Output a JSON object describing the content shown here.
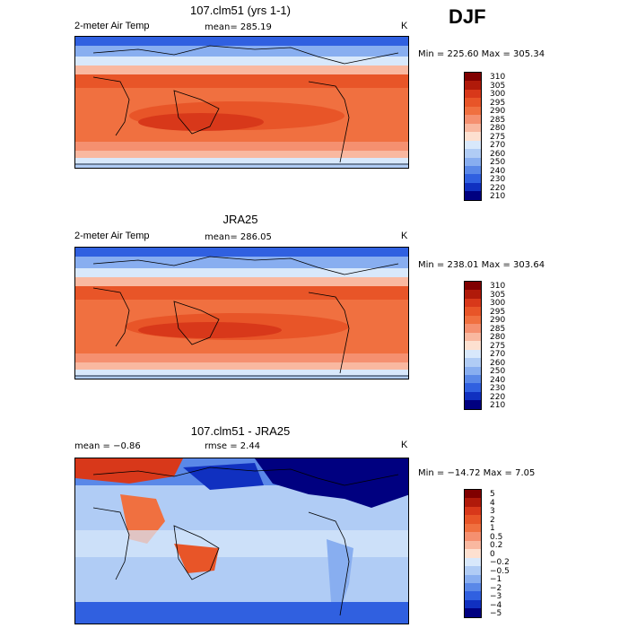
{
  "season": "DJF",
  "panels": [
    {
      "title": "107.clm51 (yrs 1-1)",
      "variable": "2-meter Air Temp",
      "mean_label": "mean= 285.19",
      "units": "K",
      "minmax": "Min = 225.60 Max = 305.34",
      "colorbar_labels": [
        "310",
        "305",
        "300",
        "295",
        "290",
        "285",
        "280",
        "275",
        "270",
        "260",
        "250",
        "240",
        "230",
        "220",
        "210"
      ]
    },
    {
      "title": "JRA25",
      "variable": "2-meter Air Temp",
      "mean_label": "mean= 286.05",
      "units": "K",
      "minmax": "Min = 238.01 Max = 303.64",
      "colorbar_labels": [
        "310",
        "305",
        "300",
        "295",
        "290",
        "285",
        "280",
        "275",
        "270",
        "260",
        "250",
        "240",
        "230",
        "220",
        "210"
      ]
    },
    {
      "title": "107.clm51 - JRA25",
      "mean_label": "mean = −0.86",
      "rmse_label": "rmse = 2.44",
      "units": "K",
      "minmax": "Min = −14.72 Max = 7.05",
      "colorbar_labels": [
        "5",
        "4",
        "3",
        "2",
        "1",
        "0.5",
        "0.2",
        "0",
        "−0.2",
        "−0.5",
        "−1",
        "−2",
        "−3",
        "−4",
        "−5"
      ]
    }
  ],
  "colors": {
    "abs_scale": [
      "#800000",
      "#b01a0a",
      "#d8381a",
      "#e85528",
      "#f07040",
      "#f59070",
      "#f9b8a0",
      "#fde0d0",
      "#d8e8fb",
      "#b0ccf5",
      "#88aef0",
      "#5a88e8",
      "#3060e0",
      "#1030c0",
      "#000080"
    ],
    "diff_scale": [
      "#800000",
      "#b01a0a",
      "#d8381a",
      "#e85528",
      "#f07040",
      "#f59070",
      "#f9b8a0",
      "#fde0d0",
      "#d8e8fb",
      "#b0ccf5",
      "#88aef0",
      "#5a88e8",
      "#3060e0",
      "#1030c0",
      "#000080"
    ]
  }
}
